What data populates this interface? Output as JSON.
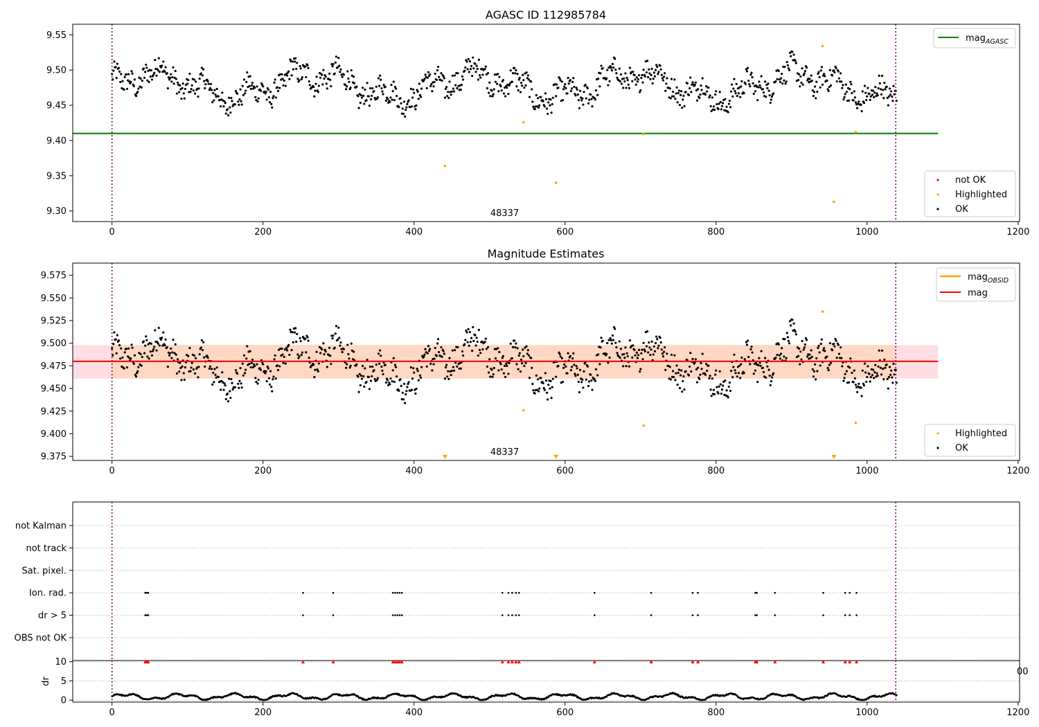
{
  "chart_data": [
    {
      "type": "scatter",
      "title": "AGASC ID 112985784",
      "xlim": [
        -52,
        1202
      ],
      "ylim": [
        9.285,
        9.565
      ],
      "xticks": [
        0,
        200,
        400,
        600,
        800,
        1000,
        1200
      ],
      "yticks": [
        9.3,
        9.35,
        9.4,
        9.45,
        9.5,
        9.55
      ],
      "ytick_labels": [
        "9.30",
        "9.35",
        "9.40",
        "9.45",
        "9.50",
        "9.55"
      ],
      "annotation": {
        "text": "48337",
        "x": 520
      },
      "vlines": [
        0,
        1038
      ],
      "hline": {
        "name": "mag_AGASC",
        "y": 9.41,
        "color": "#008000",
        "x_range": [
          -52,
          1094
        ]
      },
      "highlighted_points": [
        [
          441,
          9.364
        ],
        [
          545,
          9.426
        ],
        [
          588,
          9.34
        ],
        [
          704,
          9.409
        ],
        [
          941,
          9.534
        ],
        [
          956,
          9.313
        ],
        [
          985,
          9.412
        ]
      ],
      "ok_series": {
        "name": "OK",
        "n": 1040,
        "mean": 9.478,
        "color": "#000000"
      },
      "legends": [
        {
          "position": "top-right",
          "items": [
            {
              "label": "mag",
              "sub": "AGASC",
              "color": "#008000",
              "kind": "line"
            }
          ]
        },
        {
          "position": "lower-right",
          "items": [
            {
              "label": "not OK",
              "color": "#ff0000",
              "kind": "dot"
            },
            {
              "label": "Highlighted",
              "color": "#ffa500",
              "kind": "dot"
            },
            {
              "label": "OK",
              "color": "#000000",
              "kind": "dot"
            }
          ]
        }
      ]
    },
    {
      "type": "scatter",
      "title": "Magnitude Estimates",
      "xlim": [
        -52,
        1202
      ],
      "ylim": [
        9.3705,
        9.5885
      ],
      "xticks": [
        0,
        200,
        400,
        600,
        800,
        1000,
        1200
      ],
      "yticks": [
        9.375,
        9.4,
        9.425,
        9.45,
        9.475,
        9.5,
        9.525,
        9.55,
        9.575
      ],
      "ytick_labels": [
        "9.375",
        "9.400",
        "9.425",
        "9.450",
        "9.475",
        "9.500",
        "9.525",
        "9.550",
        "9.575"
      ],
      "annotation": {
        "text": "48337",
        "x": 520
      },
      "vlines": [
        0,
        1038
      ],
      "mag_line": {
        "name": "mag",
        "y": 9.48,
        "color": "#ff0000",
        "x_range": [
          -52,
          1094
        ]
      },
      "mag_band": {
        "y_range": [
          9.461,
          9.498
        ],
        "color": "#ffdde2",
        "x_range": [
          -52,
          1094
        ]
      },
      "obsid_band": {
        "y_range": [
          9.461,
          9.498
        ],
        "color": "#ffd8c4",
        "x_range": [
          0,
          1038
        ]
      },
      "highlighted_points": [
        [
          545,
          9.426
        ],
        [
          704,
          9.409
        ],
        [
          941,
          9.535
        ],
        [
          985,
          9.412
        ]
      ],
      "off_scale_markers": [
        441,
        588,
        956
      ],
      "legends": [
        {
          "position": "top-right",
          "items": [
            {
              "label": "mag",
              "sub": "OBSID",
              "color": "#ffa500",
              "kind": "line"
            },
            {
              "label": "mag",
              "sub": "",
              "color": "#ff0000",
              "kind": "line"
            }
          ]
        },
        {
          "position": "lower-right",
          "items": [
            {
              "label": "Highlighted",
              "color": "#ffa500",
              "kind": "dot"
            },
            {
              "label": "OK",
              "color": "#000000",
              "kind": "dot"
            }
          ]
        }
      ]
    },
    {
      "type": "scatter",
      "title": "",
      "xlim": [
        -52,
        1202
      ],
      "vlines": [
        0,
        1038
      ],
      "flag_rows": [
        "not Kalman",
        "not track",
        "Sat. pixel.",
        "Ion. rad.",
        "dr > 5",
        "OBS not OK"
      ],
      "flag_events_x": [
        44,
        46,
        48,
        253,
        293,
        372,
        375,
        378,
        381,
        384,
        517,
        525,
        530,
        535,
        539,
        639,
        714,
        769,
        776,
        852,
        854,
        878,
        942,
        971,
        977,
        986
      ],
      "flagged_rows": [
        "Ion. rad.",
        "dr > 5"
      ]
    },
    {
      "type": "scatter",
      "title": "",
      "ylabel": "dr",
      "xlim": [
        -52,
        1202
      ],
      "ylim": [
        -0.5,
        10.3
      ],
      "xticks": [
        0,
        200,
        400,
        600,
        800,
        1000,
        1200
      ],
      "xtick_labels": [
        "0",
        "200",
        "400",
        "600",
        "800",
        "1000",
        "1200"
      ],
      "yticks": [
        0,
        5,
        10
      ],
      "ytick_labels": [
        "0",
        "5",
        "10"
      ],
      "vlines": [
        0,
        1038
      ],
      "edge_label": "00",
      "capped_points_x": [
        44,
        46,
        48,
        253,
        293,
        372,
        375,
        378,
        381,
        384,
        517,
        525,
        530,
        535,
        539,
        639,
        714,
        769,
        776,
        852,
        854,
        878,
        942,
        971,
        977,
        986
      ],
      "capped_value": 10
    }
  ]
}
